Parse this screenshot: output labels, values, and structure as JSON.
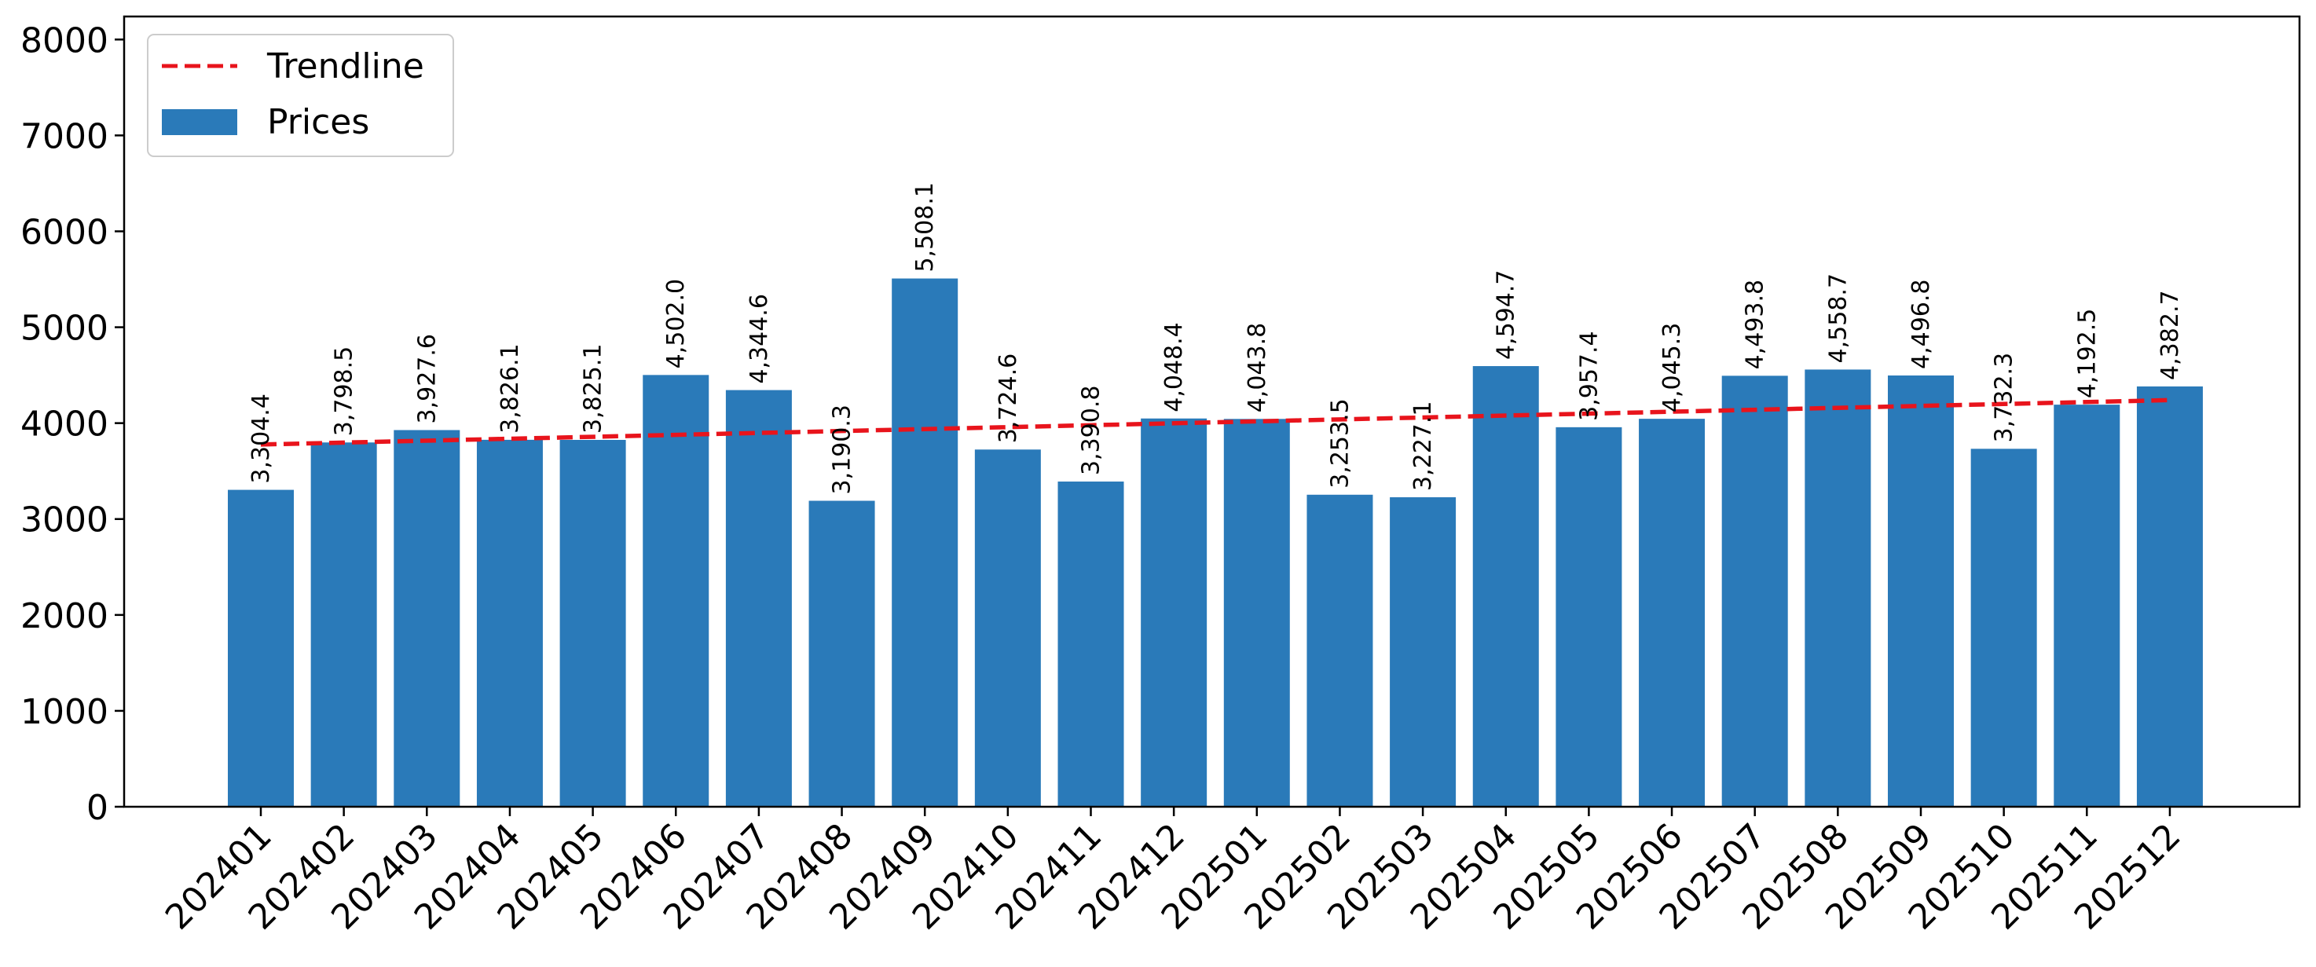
{
  "chart_data": {
    "type": "bar",
    "title": "",
    "xlabel": "",
    "ylabel": "",
    "categories": [
      "202401",
      "202402",
      "202403",
      "202404",
      "202405",
      "202406",
      "202407",
      "202408",
      "202409",
      "202410",
      "202411",
      "202412",
      "202501",
      "202502",
      "202503",
      "202504",
      "202505",
      "202506",
      "202507",
      "202508",
      "202509",
      "202510",
      "202511",
      "202512"
    ],
    "series": [
      {
        "name": "Prices",
        "color": "#2a7ab9",
        "values": [
          3304.4,
          3798.5,
          3927.6,
          3826.1,
          3825.1,
          4502.0,
          4344.6,
          3190.3,
          5508.1,
          3724.6,
          3390.8,
          4048.4,
          4043.8,
          3253.5,
          3227.1,
          4594.7,
          3957.4,
          4045.3,
          4493.8,
          4558.7,
          4496.8,
          3732.3,
          4192.5,
          4382.7
        ],
        "labels": [
          "3,304.4",
          "3,798.5",
          "3,927.6",
          "3,826.1",
          "3,825.1",
          "4,502.0",
          "4,344.6",
          "3,190.3",
          "5,508.1",
          "3,724.6",
          "3,390.8",
          "4,048.4",
          "4,043.8",
          "3,253.5",
          "3,227.1",
          "4,594.7",
          "3,957.4",
          "4,045.3",
          "4,493.8",
          "4,558.7",
          "4,496.8",
          "3,732.3",
          "4,192.5",
          "4,382.7"
        ]
      }
    ],
    "trendline": {
      "name": "Trendline",
      "color": "#e8141c",
      "style": "dashed",
      "start": 3777,
      "end": 4240
    },
    "ylim": [
      0,
      8240
    ],
    "yticks": [
      0,
      1000,
      2000,
      3000,
      4000,
      5000,
      6000,
      7000,
      8000
    ],
    "grid": false,
    "legend": {
      "position": "top-left",
      "entries": [
        "Trendline",
        "Prices"
      ]
    }
  }
}
